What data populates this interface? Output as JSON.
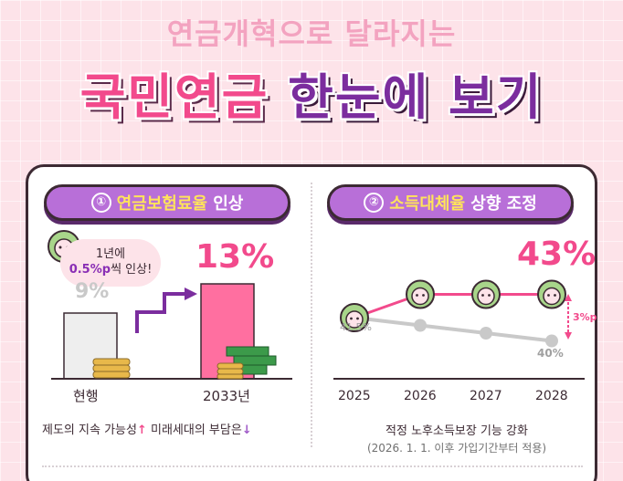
{
  "header": {
    "subtitle": "연금개혁으로 달라지는",
    "title_part1": "국민연금",
    "title_part2": "한눈에 보기"
  },
  "left_panel": {
    "badge_num": "①",
    "badge_hl": "연금보험료율",
    "badge_rest": " 인상",
    "bubble_line1": "1년에",
    "bubble_em": "0.5%p",
    "bubble_line2": "씩 인상!",
    "note_part1": "제도의 지속 가능성",
    "note_up": "↑",
    "note_part2": " 미래세대의 부담은",
    "note_down": "↓"
  },
  "right_panel": {
    "badge_num": "②",
    "badge_hl": "소득대체율",
    "badge_rest": " 상향 조정",
    "diff_label": "3%p",
    "caption_line1": "적정 노후소득보장 기능 강화",
    "caption_line2": "(2026. 1. 1. 이후 가입기간부터 적용)"
  },
  "chart_data": [
    {
      "type": "bar",
      "categories": [
        "현행",
        "2033년"
      ],
      "values": [
        9,
        13
      ],
      "value_labels": [
        "9%",
        "13%"
      ],
      "unit": "%",
      "colors": [
        "#eeeeee",
        "#ff6fa0"
      ]
    },
    {
      "type": "line",
      "x": [
        "2025",
        "2026",
        "2027",
        "2028"
      ],
      "series": [
        {
          "values": [
            41.5,
            43,
            43,
            43
          ],
          "color": "#f24a8c"
        },
        {
          "values": [
            41.5,
            41,
            40.5,
            40
          ],
          "color": "#c9c9c9"
        }
      ],
      "labels": {
        "start": "41.5%",
        "end_old": "40%",
        "end_new": "43%"
      }
    }
  ],
  "colors": {
    "pink": "#f24a8c",
    "purple": "#7b2d9e",
    "badge": "#b86fd8",
    "grey": "#c9c9c9"
  }
}
